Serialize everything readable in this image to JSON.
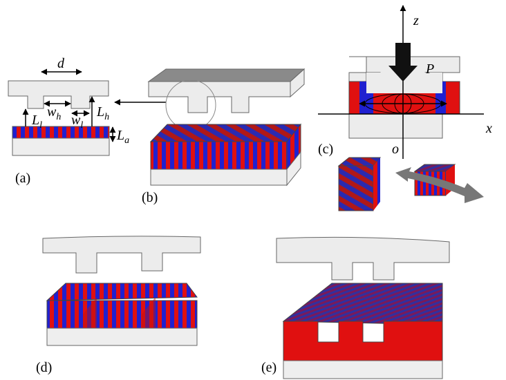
{
  "panels": {
    "a": "(a)",
    "b": "(b)",
    "c": "(c)",
    "d": "(d)",
    "e": "(e)"
  },
  "labels": {
    "d": "d",
    "w_h": {
      "symbol": "w",
      "subscript": "h"
    },
    "w_l": {
      "symbol": "w",
      "subscript": "l"
    },
    "L_l": {
      "symbol": "L",
      "subscript": "l"
    },
    "L_h": {
      "symbol": "L",
      "subscript": "h"
    },
    "L_a": {
      "symbol": "L",
      "subscript": "a"
    },
    "z": "z",
    "P": "P",
    "x": "x",
    "o": "o"
  }
}
